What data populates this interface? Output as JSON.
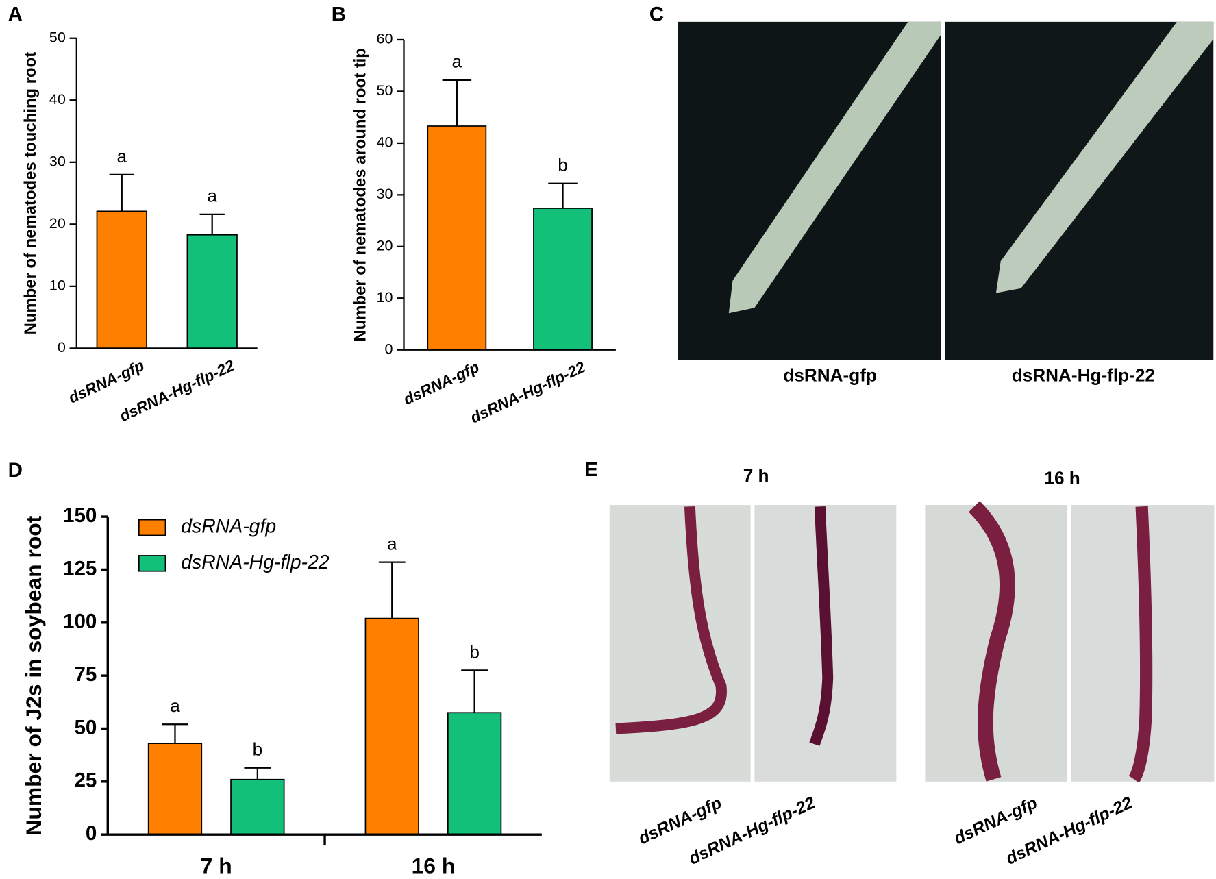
{
  "chart_data": [
    {
      "type": "bar",
      "panel": "A",
      "y_label": "Number of nematodes touching root",
      "categories": [
        "dsRNA-gfp",
        "dsRNA-Hg-flp-22"
      ],
      "values": [
        22.1,
        18.3
      ],
      "errors": [
        5.9,
        3.3
      ],
      "letters": [
        "a",
        "a"
      ],
      "colors": [
        "#ff8000",
        "#12c07a"
      ],
      "ylim": [
        0,
        50
      ],
      "yticks": [
        0,
        10,
        20,
        30,
        40,
        50
      ]
    },
    {
      "type": "bar",
      "panel": "B",
      "y_label": "Number of nematodes around root tip",
      "categories": [
        "dsRNA-gfp",
        "dsRNA-Hg-flp-22"
      ],
      "values": [
        43.3,
        27.4
      ],
      "errors": [
        8.9,
        4.8
      ],
      "letters": [
        "a",
        "b"
      ],
      "colors": [
        "#ff8000",
        "#12c07a"
      ],
      "ylim": [
        0,
        60
      ],
      "yticks": [
        0,
        10,
        20,
        30,
        40,
        50,
        60
      ]
    },
    {
      "type": "bar",
      "panel": "D",
      "y_label": "Number of J2s in soybean root",
      "categories": [
        "7 h",
        "16 h"
      ],
      "series": [
        {
          "name": "dsRNA-gfp",
          "color": "#ff8000",
          "values": [
            43,
            102
          ],
          "errors": [
            9,
            26.5
          ],
          "letters": [
            "a",
            "a"
          ]
        },
        {
          "name": "dsRNA-Hg-flp-22",
          "color": "#12c07a",
          "values": [
            26,
            57.5
          ],
          "errors": [
            5.5,
            20
          ],
          "letters": [
            "b",
            "b"
          ]
        }
      ],
      "legend": "top-left",
      "ylim": [
        0,
        150
      ],
      "yticks": [
        0,
        25,
        50,
        75,
        100,
        125,
        150
      ]
    }
  ],
  "panels": [
    {
      "label": "C",
      "captions": [
        "dsRNA-gfp",
        "dsRNA-Hg-flp-22"
      ]
    },
    {
      "label": "E",
      "headings": [
        "7 h",
        "16 h"
      ],
      "captions": [
        "dsRNA-gfp",
        "dsRNA-Hg-flp-22",
        "dsRNA-gfp",
        "dsRNA-Hg-flp-22"
      ]
    }
  ]
}
